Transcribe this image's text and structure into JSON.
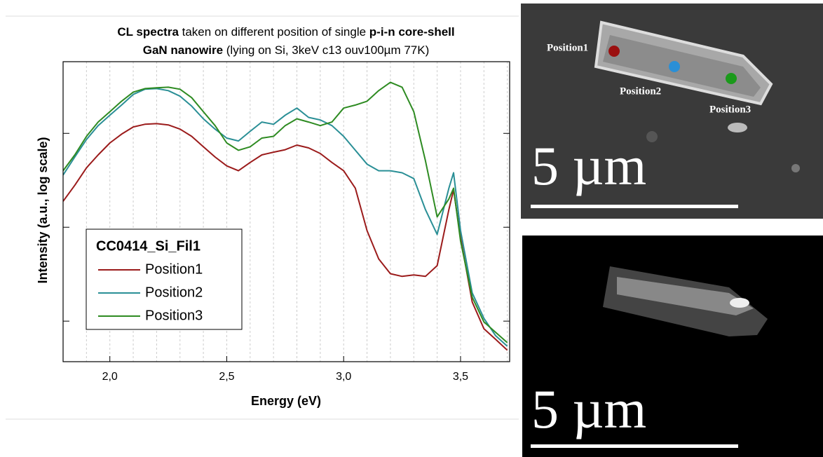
{
  "chart_data": {
    "type": "line",
    "title": [
      [
        {
          "text": "CL spectra",
          "bold": true
        },
        {
          "text": " taken on different position of single "
        },
        {
          "text": "p-i-n core-shell",
          "bold": true
        }
      ],
      [
        {
          "text": "GaN nanowire",
          "bold": true
        },
        {
          "text": " (lying on Si, 3keV c13 ouv100µm 77K)"
        }
      ]
    ],
    "x_label": "Energy (eV)",
    "y_label": "Intensity (a.u., log scale)",
    "x": [
      1.8,
      1.85,
      1.9,
      1.95,
      2.0,
      2.05,
      2.1,
      2.15,
      2.2,
      2.25,
      2.3,
      2.35,
      2.4,
      2.45,
      2.5,
      2.55,
      2.6,
      2.65,
      2.7,
      2.75,
      2.8,
      2.85,
      2.9,
      2.95,
      3.0,
      3.05,
      3.1,
      3.15,
      3.2,
      3.25,
      3.3,
      3.35,
      3.4,
      3.45,
      3.47,
      3.5,
      3.55,
      3.6,
      3.65,
      3.7
    ],
    "series": [
      {
        "name": "Position1",
        "color": "#9b1b1b",
        "values": [
          1.89,
          2.8,
          4.3,
          5.9,
          7.9,
          9.8,
          11.7,
          12.5,
          12.7,
          12.3,
          11.1,
          9.3,
          7.2,
          5.6,
          4.5,
          4.0,
          4.9,
          5.9,
          6.3,
          6.7,
          7.5,
          7.0,
          6.1,
          4.9,
          4.0,
          2.6,
          0.92,
          0.46,
          0.32,
          0.3,
          0.31,
          0.3,
          0.39,
          1.54,
          2.5,
          0.77,
          0.16,
          0.083,
          0.064,
          0.049
        ]
      },
      {
        "name": "Position2",
        "color": "#2a8f96",
        "values": [
          3.6,
          5.6,
          8.6,
          12.1,
          15.6,
          20,
          26,
          29.5,
          30,
          28.5,
          24.9,
          19.5,
          14.3,
          11.1,
          8.9,
          8.3,
          10.5,
          13.2,
          12.5,
          15.6,
          18.6,
          14.8,
          13.9,
          12.1,
          9.3,
          6.6,
          4.7,
          4.0,
          4.0,
          3.8,
          3.3,
          1.54,
          0.84,
          2.6,
          3.8,
          0.92,
          0.2,
          0.107,
          0.07,
          0.054
        ]
      },
      {
        "name": "Position3",
        "color": "#2e8b22",
        "values": [
          4.0,
          5.9,
          9.3,
          13.2,
          17,
          22,
          27.5,
          30,
          30.6,
          31,
          29.5,
          24,
          17,
          12.1,
          7.9,
          6.6,
          7.2,
          8.9,
          9.3,
          12.1,
          14.3,
          13.2,
          12.1,
          13.2,
          18.6,
          20,
          22,
          28.5,
          35,
          31,
          17,
          5.1,
          1.29,
          2.0,
          2.6,
          0.71,
          0.18,
          0.098,
          0.076,
          0.059
        ]
      }
    ],
    "legend": {
      "title": "CC0414_Si_Fil1"
    },
    "xlim": [
      1.8,
      3.71
    ],
    "xticks": [
      {
        "value": 2.0,
        "label": "2,0"
      },
      {
        "value": 2.5,
        "label": "2,5"
      },
      {
        "value": 3.0,
        "label": "3,0"
      },
      {
        "value": 3.5,
        "label": "3,5"
      }
    ],
    "x_minor_grid": [
      1.9,
      2.1,
      2.2,
      2.3,
      2.4,
      2.6,
      2.7,
      2.8,
      2.9,
      3.1,
      3.2,
      3.3,
      3.4,
      3.6,
      3.7
    ],
    "ylim": [
      0.037,
      58
    ],
    "yticks": [
      0.1,
      1,
      10
    ],
    "y_log_scale": true,
    "grid": true
  },
  "images": [
    {
      "labels": [
        "Position1",
        "Position2",
        "Position3"
      ],
      "scale_bar": "5 µm"
    },
    {
      "scale_bar": "5 µm"
    }
  ]
}
